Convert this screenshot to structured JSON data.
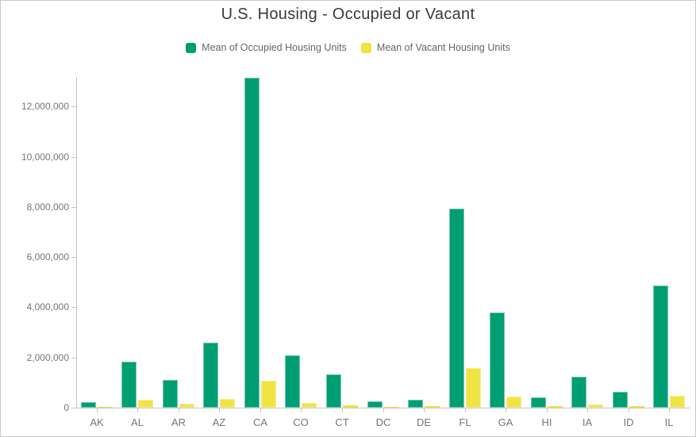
{
  "chart_data": {
    "type": "bar",
    "title": "U.S. Housing - Occupied or Vacant",
    "xlabel": "",
    "ylabel": "",
    "grid": false,
    "legend_position": "top",
    "background": "#ffffff",
    "axis_color": "#c4c4c4",
    "tick_text_color": "#767676",
    "title_color": "#3a3a3a",
    "legend_text_color": "#666666",
    "categories": [
      "AK",
      "AL",
      "AR",
      "AZ",
      "CA",
      "CO",
      "CT",
      "DC",
      "DE",
      "FL",
      "GA",
      "HI",
      "IA",
      "ID",
      "IL"
    ],
    "series": [
      {
        "name": "Mean of Occupied Housing Units",
        "slug": "occupied",
        "color": "#009E73",
        "values": [
          220000,
          1840000,
          1120000,
          2600000,
          13150000,
          2080000,
          1340000,
          250000,
          320000,
          7930000,
          3800000,
          410000,
          1230000,
          620000,
          4870000
        ]
      },
      {
        "name": "Mean of Vacant Housing Units",
        "slug": "vacant",
        "color": "#F0E442",
        "values": [
          45000,
          330000,
          170000,
          340000,
          1060000,
          190000,
          90000,
          30000,
          60000,
          1580000,
          450000,
          75000,
          120000,
          75000,
          465000
        ]
      }
    ],
    "ylim": [
      0,
      13200000
    ],
    "y_ticks": [
      0,
      2000000,
      4000000,
      6000000,
      8000000,
      10000000,
      12000000
    ],
    "y_tick_labels": [
      "0",
      "2,000,000",
      "4,000,000",
      "6,000,000",
      "8,000,000",
      "10,000,000",
      "12,000,000"
    ]
  }
}
